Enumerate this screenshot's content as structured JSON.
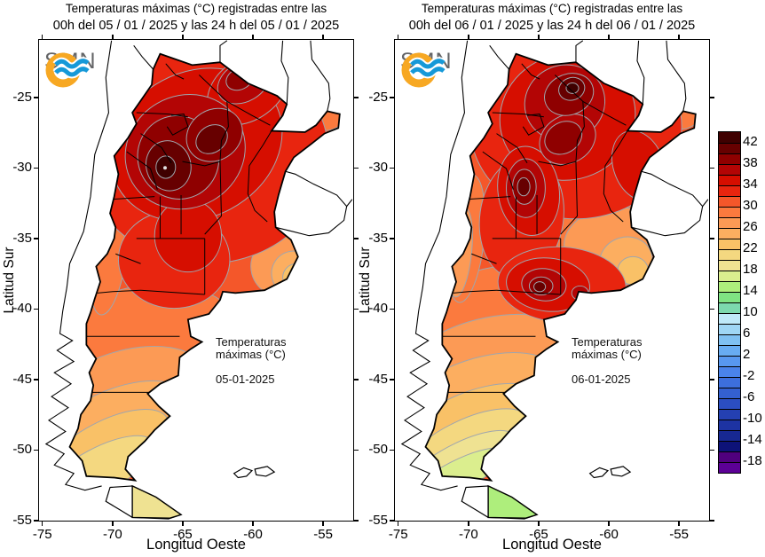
{
  "figure": {
    "background": "#ffffff"
  },
  "panels": [
    {
      "title_line1": "Temperaturas máximas (°C) registradas entre las",
      "title_line2": "00h del 05 / 01 / 2025 y las 24 h del 05 / 01 / 2025",
      "ylabel": "Latitud Sur",
      "xlabel": "Longitud Oeste",
      "lat_ticks": [
        "-25",
        "-30",
        "-35",
        "-40",
        "-45",
        "-50",
        "-55"
      ],
      "lon_ticks": [
        "-75",
        "-70",
        "-65",
        "-60",
        "-55"
      ],
      "annotation_line1": "Temperaturas",
      "annotation_line2": "máximas (°C)",
      "annotation_date": "05-01-2025",
      "logo_text": "SMN"
    },
    {
      "title_line1": "Temperaturas máximas (°C) registradas entre las",
      "title_line2": "00h del 06 / 01 / 2025 y las 24 h del 06 / 01 / 2025",
      "ylabel": "Latitud Sur",
      "xlabel": "Longitud Oeste",
      "lat_ticks": [
        "-25",
        "-30",
        "-35",
        "-40",
        "-45",
        "-50",
        "-55"
      ],
      "lon_ticks": [
        "-75",
        "-70",
        "-65",
        "-60",
        "-55"
      ],
      "annotation_line1": "Temperaturas",
      "annotation_line2": "máximas (°C)",
      "annotation_date": "06-01-2025",
      "logo_text": "SMN"
    }
  ],
  "colorbar": {
    "tick_labels": [
      "42",
      "38",
      "34",
      "30",
      "26",
      "22",
      "18",
      "14",
      "10",
      "6",
      "2",
      "-2",
      "-6",
      "-10",
      "-14",
      "-18"
    ],
    "colors": [
      "#3f0000",
      "#670000",
      "#8f0000",
      "#b30505",
      "#d60e00",
      "#e8250f",
      "#f4572a",
      "#fb7a3e",
      "#fc9a55",
      "#fcae60",
      "#f9c167",
      "#f4d880",
      "#efe292",
      "#dbee8e",
      "#aeee7c",
      "#7fe383",
      "#7cd9ae",
      "#bfe9f9",
      "#9fd6f5",
      "#7fc0f2",
      "#68acf2",
      "#5898f0",
      "#4a83ea",
      "#3d6fdd",
      "#3460d0",
      "#2b4ec2",
      "#2440b2",
      "#1d33a2",
      "#172892",
      "#0d1278",
      "#50007e",
      "#5c0096"
    ]
  },
  "logo_colors": {
    "ring": "#f7a823",
    "waves": "#1699d8",
    "text": "#636466"
  },
  "map_colors": {
    "outline": "#000000",
    "contour_line": "#a0a6ad",
    "neighbor_line": "#000000"
  },
  "chart_data": {
    "type": "filled-contour-map",
    "region": "Argentina",
    "units": "°C",
    "lat_axis_ticks": [
      -25,
      -30,
      -35,
      -40,
      -45,
      -50,
      -55
    ],
    "lon_axis_ticks": [
      -75,
      -70,
      -65,
      -60,
      -55
    ],
    "colorbar_range": [
      -20,
      44
    ],
    "colorbar_step": 2,
    "colorbar_tick_values": [
      42,
      38,
      34,
      30,
      26,
      22,
      18,
      14,
      10,
      6,
      2,
      -2,
      -6,
      -10,
      -14,
      -18
    ],
    "panels": [
      {
        "date": "05-01-2025",
        "hottest_band_c": "42-44",
        "hot_cores_lon_lat": [
          [
            -66.2,
            -29.9
          ],
          [
            -62.9,
            -27.9
          ],
          [
            -60.9,
            -23.6
          ]
        ],
        "patagonia_band_c": "22-28",
        "tierra_del_fuego_band_c": "18-20"
      },
      {
        "date": "06-01-2025",
        "hottest_band_c": "42-44",
        "hot_cores_lon_lat": [
          [
            -62.6,
            -24.3
          ],
          [
            -66.0,
            -31.3
          ],
          [
            -64.9,
            -38.4
          ]
        ],
        "patagonia_band_c": "18-26",
        "tierra_del_fuego_band_c": "14-16"
      }
    ]
  }
}
